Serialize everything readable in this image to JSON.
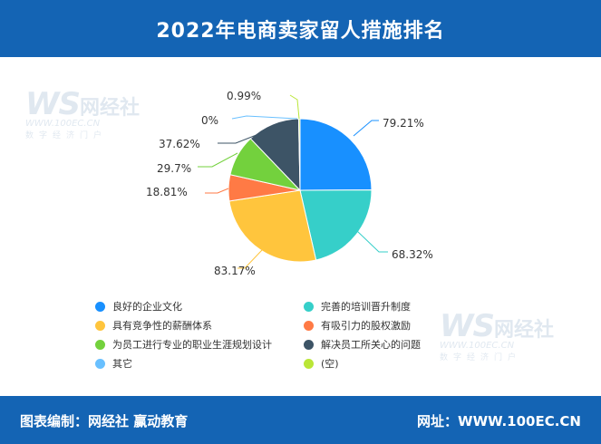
{
  "header": {
    "title": "2022年电商卖家留人措施排名"
  },
  "footer": {
    "left": "图表编制：网经社 赢动教育",
    "right": "网址：WWW.100EC.CN"
  },
  "watermark": {
    "logo": "WS",
    "cn": "网经社",
    "url": "WWW.100EC.CN",
    "tag": "数字经济门户"
  },
  "chart_data": {
    "type": "pie",
    "title": "2022年电商卖家留人措施排名",
    "legend_position": "bottom",
    "series": [
      {
        "name": "良好的企业文化",
        "value": 79.21,
        "label": "79.21%",
        "color": "#1890ff"
      },
      {
        "name": "完善的培训晋升制度",
        "value": 68.32,
        "label": "68.32%",
        "color": "#36cfc9"
      },
      {
        "name": "具有竞争性的薪酬体系",
        "value": 83.17,
        "label": "83.17%",
        "color": "#ffc53d"
      },
      {
        "name": "有吸引力的股权激励",
        "value": 18.81,
        "label": "18.81%",
        "color": "#ff7a45"
      },
      {
        "name": "为员工进行专业的职业生涯规划设计",
        "value": 29.7,
        "label": "29.7%",
        "color": "#73d13d"
      },
      {
        "name": "解决员工所关心的问题",
        "value": 37.62,
        "label": "37.62%",
        "color": "#3d5466"
      },
      {
        "name": "其它",
        "value": 0,
        "label": "0%",
        "color": "#69c0ff"
      },
      {
        "name": "(空)",
        "value": 0.99,
        "label": "0.99%",
        "color": "#bae637"
      }
    ]
  }
}
